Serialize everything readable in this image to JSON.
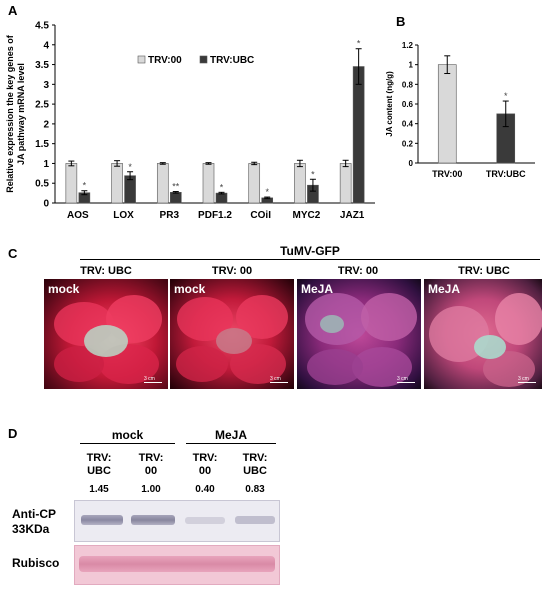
{
  "panels": {
    "a": "A",
    "b": "B",
    "c": "C",
    "d": "D"
  },
  "chart_data": [
    {
      "type": "bar",
      "ylabel": "Relative expression the key genes of\nJA pathway  mRNA level",
      "ylim": [
        0,
        4.5
      ],
      "yticks": [
        "0",
        "0.5",
        "1",
        "1.5",
        "2",
        "2.5",
        "3",
        "3.5",
        "4",
        "4.5"
      ],
      "categories": [
        "AOS",
        "LOX",
        "PR3",
        "PDF1.2",
        "COiI",
        "MYC2",
        "JAZ1"
      ],
      "legend_position": "top-center",
      "series": [
        {
          "name": "TRV:00",
          "color": "#d9d9d9",
          "values": [
            1.0,
            1.0,
            1.0,
            1.0,
            1.0,
            1.0,
            1.0
          ],
          "errors": [
            0.06,
            0.07,
            0.02,
            0.02,
            0.03,
            0.08,
            0.08
          ]
        },
        {
          "name": "TRV:UBC",
          "color": "#3a3a3a",
          "values": [
            0.26,
            0.69,
            0.27,
            0.25,
            0.13,
            0.45,
            3.45
          ],
          "errors": [
            0.05,
            0.1,
            0.02,
            0.02,
            0.02,
            0.15,
            0.45
          ]
        }
      ],
      "significance": [
        "*",
        "*",
        "**",
        "*",
        "*",
        "*",
        "*"
      ]
    },
    {
      "type": "bar",
      "ylabel": "JA content (ng/g)",
      "ylim": [
        0,
        1.2
      ],
      "yticks": [
        "0",
        "0.2",
        "0.4",
        "0.6",
        "0.8",
        "1",
        "1.2"
      ],
      "categories": [
        "TRV:00",
        "TRV:UBC"
      ],
      "values": [
        1.0,
        0.5
      ],
      "errors": [
        0.09,
        0.13
      ],
      "colors": [
        "#d9d9d9",
        "#3a3a3a"
      ],
      "significance": [
        "",
        "*"
      ]
    }
  ],
  "panel_c": {
    "title": "TuMV-GFP",
    "column_labels": [
      "TRV: UBC",
      "TRV: 00",
      "TRV: 00",
      "TRV: UBC"
    ],
    "photo_labels": [
      "mock",
      "mock",
      "MeJA",
      "MeJA"
    ],
    "scale_text": "3 cm"
  },
  "panel_d": {
    "groups": [
      "mock",
      "MeJA"
    ],
    "lanes": [
      "TRV:\nUBC",
      "TRV:\n00",
      "TRV:\n00",
      "TRV:\nUBC"
    ],
    "quant": [
      "1.45",
      "1.00",
      "0.40",
      "0.83"
    ],
    "row_labels": [
      "Anti-CP\n33KDa",
      "Rubisco"
    ]
  }
}
